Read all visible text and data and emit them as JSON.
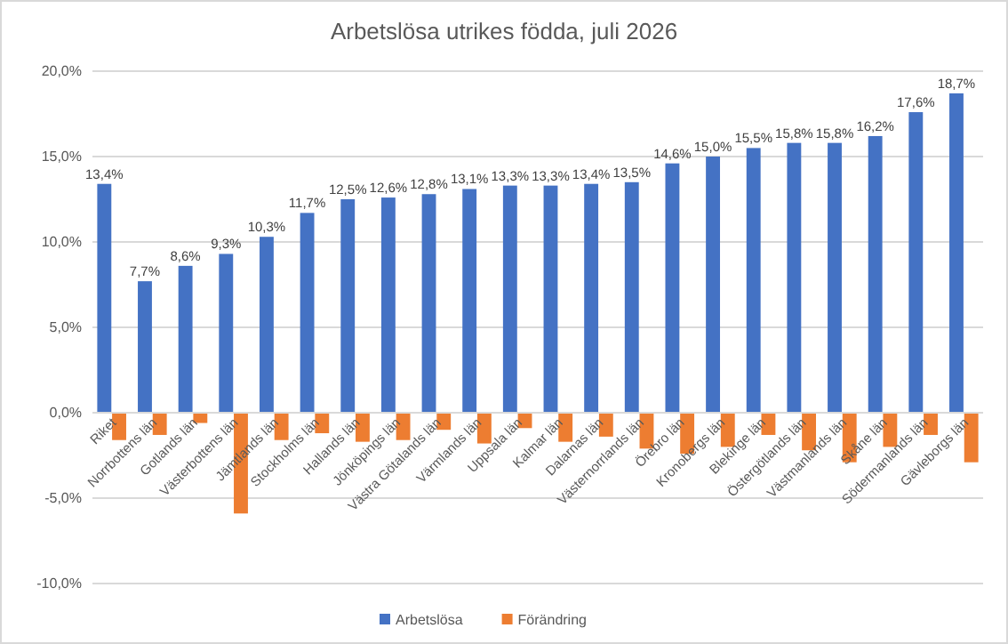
{
  "chart_data": {
    "type": "bar",
    "title": "Arbetslösa utrikes födda, juli 2026",
    "categories": [
      "Riket",
      "Norrbottens län",
      "Gotlands län",
      "Västerbottens län",
      "Jämtlands län",
      "Stockholms län",
      "Hallands län",
      "Jönköpings län",
      "Västra Götalands län",
      "Värmlands län",
      "Uppsala län",
      "Kalmar län",
      "Dalarnas län",
      "Västernorrlands län",
      "Örebro län",
      "Kronobergs län",
      "Blekinge län",
      "Östergötlands län",
      "Västmanlands län",
      "Skåne län",
      "Södermanlands län",
      "Gävleborgs län"
    ],
    "series": [
      {
        "name": "Arbetslösa",
        "color": "#4472c4",
        "values": [
          13.4,
          7.7,
          8.6,
          9.3,
          10.3,
          11.7,
          12.5,
          12.6,
          12.8,
          13.1,
          13.3,
          13.3,
          13.4,
          13.5,
          14.6,
          15.0,
          15.5,
          15.8,
          15.8,
          16.2,
          17.6,
          18.7
        ],
        "value_labels": [
          "13,4%",
          "7,7%",
          "8,6%",
          "9,3%",
          "10,3%",
          "11,7%",
          "12,5%",
          "12,6%",
          "12,8%",
          "13,1%",
          "13,3%",
          "13,3%",
          "13,4%",
          "13,5%",
          "14,6%",
          "15,0%",
          "15,5%",
          "15,8%",
          "15,8%",
          "16,2%",
          "17,6%",
          "18,7%"
        ]
      },
      {
        "name": "Förändring",
        "color": "#ed7d31",
        "values": [
          -1.6,
          -1.3,
          -0.6,
          -5.9,
          -1.6,
          -1.2,
          -1.7,
          -1.6,
          -1.0,
          -1.8,
          -0.9,
          -1.7,
          -1.4,
          -2.1,
          -2.4,
          -2.0,
          -1.3,
          -2.2,
          -2.9,
          -2.0,
          -1.3,
          -2.9
        ]
      }
    ],
    "ylim": [
      -10,
      20
    ],
    "yticks": [
      {
        "value": -10,
        "label": "-10,0%"
      },
      {
        "value": -5,
        "label": "-5,0%"
      },
      {
        "value": 0,
        "label": "0,0%"
      },
      {
        "value": 5,
        "label": "5,0%"
      },
      {
        "value": 10,
        "label": "10,0%"
      },
      {
        "value": 15,
        "label": "15,0%"
      },
      {
        "value": 20,
        "label": "20,0%"
      }
    ],
    "grid": "y",
    "legend": "bottom"
  }
}
